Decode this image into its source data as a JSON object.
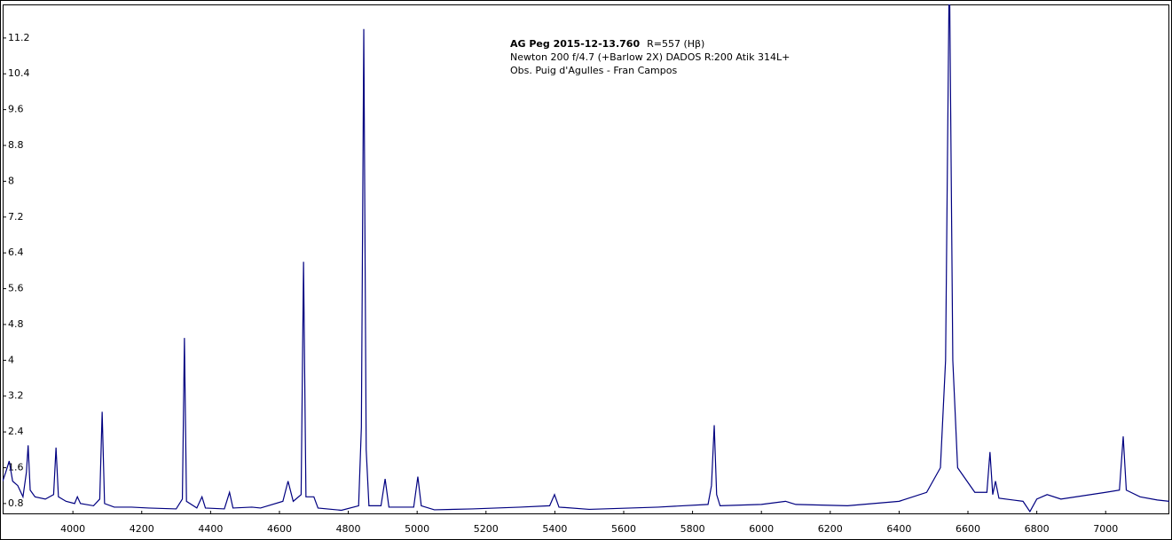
{
  "chart_data": {
    "type": "line",
    "title": "AG Peg 2015-12-13.760",
    "annotations": [
      "R=557 (Hβ)",
      "Newton 200 f/4.7 (+Barlow 2X) DADOS R:200 Atik 314L+",
      "Obs. Puig d'Agulles - Fran Campos"
    ],
    "color": "#000080",
    "xlim": [
      3796,
      7185
    ],
    "ylim": [
      0.56,
      11.95
    ],
    "xticks": [
      4000,
      4200,
      4400,
      4600,
      4800,
      5000,
      5200,
      5400,
      5600,
      5800,
      6000,
      6200,
      6400,
      6600,
      6800,
      7000
    ],
    "yticks": [
      0.8,
      1.6,
      2.4,
      3.2,
      4,
      4.8,
      5.6,
      6.4,
      7.2,
      8,
      8.8,
      9.6,
      10.4,
      11.2
    ],
    "x": [
      3796,
      3805,
      3815,
      3825,
      3840,
      3855,
      3865,
      3870,
      3876,
      3890,
      3920,
      3944,
      3951,
      3958,
      3980,
      4005,
      4013,
      4022,
      4060,
      4078,
      4085,
      4092,
      4120,
      4170,
      4220,
      4300,
      4318,
      4324,
      4330,
      4360,
      4375,
      4385,
      4440,
      4455,
      4465,
      4520,
      4545,
      4610,
      4625,
      4640,
      4663,
      4670,
      4677,
      4700,
      4712,
      4780,
      4830,
      4838,
      4845,
      4852,
      4860,
      4895,
      4907,
      4918,
      4990,
      5002,
      5012,
      5050,
      5160,
      5300,
      5385,
      5399,
      5412,
      5500,
      5700,
      5845,
      5855,
      5863,
      5870,
      5880,
      6000,
      6070,
      6100,
      6250,
      6400,
      6480,
      6520,
      6535,
      6546,
      6556,
      6570,
      6620,
      6655,
      6664,
      6672,
      6680,
      6690,
      6760,
      6780,
      6800,
      6830,
      6870,
      7000,
      7040,
      7051,
      7060,
      7100,
      7150,
      7185
    ],
    "values": [
      1.3,
      1.5,
      1.75,
      1.3,
      1.2,
      0.95,
      1.5,
      2.1,
      1.1,
      0.95,
      0.9,
      1.0,
      2.05,
      0.95,
      0.85,
      0.8,
      0.95,
      0.8,
      0.75,
      0.9,
      2.85,
      0.8,
      0.72,
      0.72,
      0.7,
      0.68,
      0.9,
      4.5,
      0.85,
      0.7,
      0.95,
      0.7,
      0.68,
      1.05,
      0.7,
      0.72,
      0.7,
      0.85,
      1.3,
      0.85,
      1.0,
      6.2,
      0.95,
      0.95,
      0.7,
      0.65,
      0.75,
      2.5,
      11.4,
      2.0,
      0.75,
      0.75,
      1.35,
      0.72,
      0.72,
      1.4,
      0.75,
      0.66,
      0.68,
      0.72,
      0.75,
      1.0,
      0.72,
      0.67,
      0.72,
      0.78,
      1.2,
      2.55,
      1.0,
      0.75,
      0.78,
      0.85,
      0.78,
      0.75,
      0.85,
      1.05,
      1.6,
      4.0,
      13,
      4.0,
      1.6,
      1.05,
      1.05,
      1.95,
      1.0,
      1.3,
      0.92,
      0.85,
      0.62,
      0.9,
      1.0,
      0.9,
      1.05,
      1.1,
      2.3,
      1.1,
      0.95,
      0.88,
      0.85
    ]
  }
}
